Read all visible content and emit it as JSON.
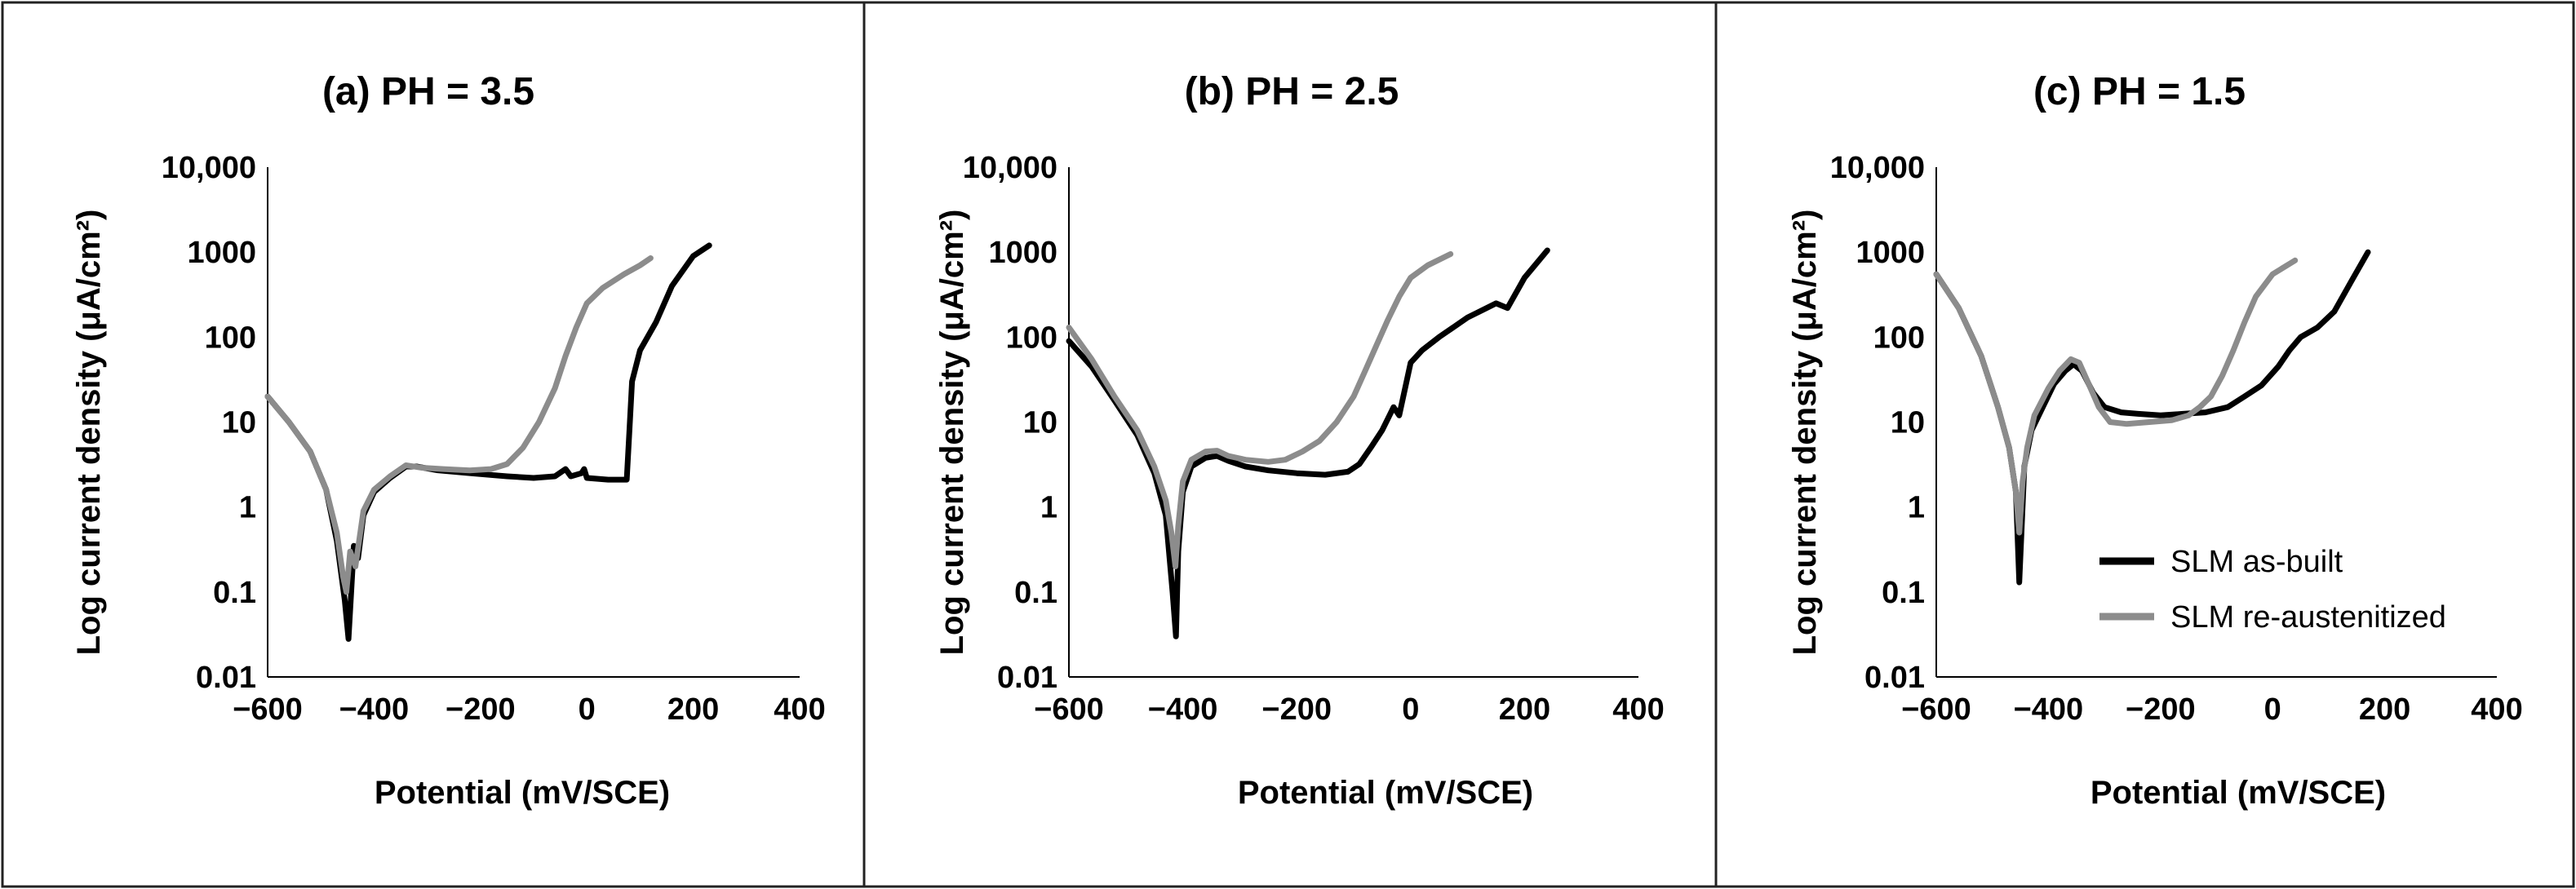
{
  "chart_data": [
    {
      "type": "line",
      "title": "(a)  PH = 3.5",
      "xlabel": "Potential (mV/SCE)",
      "ylabel": "Log current density (μA/cm²)",
      "xlim": [
        -600,
        400
      ],
      "ylim": [
        0.01,
        10000
      ],
      "yscale": "log",
      "x_ticks": [
        -600,
        -400,
        -200,
        0,
        200,
        400
      ],
      "x_tick_labels": [
        "−600",
        "−400",
        "−200",
        "0",
        "200",
        "400"
      ],
      "y_ticks": [
        10000,
        1000,
        100,
        10,
        1,
        0.1,
        0.01
      ],
      "y_tick_labels": [
        "10,000",
        "1000",
        "100",
        "10",
        "1",
        "0.1",
        "0.01"
      ],
      "series": [
        {
          "name": "SLM as-built",
          "color": "#000000",
          "points": [
            [
              -600,
              20
            ],
            [
              -560,
              10
            ],
            [
              -520,
              4.5
            ],
            [
              -490,
              1.6
            ],
            [
              -470,
              0.4
            ],
            [
              -455,
              0.08
            ],
            [
              -448,
              0.028
            ],
            [
              -443,
              0.1
            ],
            [
              -438,
              0.35
            ],
            [
              -430,
              0.25
            ],
            [
              -420,
              0.8
            ],
            [
              -400,
              1.5
            ],
            [
              -370,
              2.2
            ],
            [
              -340,
              3.0
            ],
            [
              -320,
              3.0
            ],
            [
              -280,
              2.7
            ],
            [
              -220,
              2.5
            ],
            [
              -150,
              2.3
            ],
            [
              -100,
              2.2
            ],
            [
              -60,
              2.3
            ],
            [
              -40,
              2.8
            ],
            [
              -30,
              2.3
            ],
            [
              -10,
              2.5
            ],
            [
              -5,
              2.8
            ],
            [
              0,
              2.2
            ],
            [
              40,
              2.1
            ],
            [
              75,
              2.1
            ],
            [
              80,
              8
            ],
            [
              85,
              30
            ],
            [
              100,
              70
            ],
            [
              130,
              150
            ],
            [
              160,
              400
            ],
            [
              200,
              900
            ],
            [
              230,
              1200
            ]
          ]
        },
        {
          "name": "SLM re-austenitized",
          "color": "#8c8c8c",
          "points": [
            [
              -600,
              20
            ],
            [
              -560,
              10
            ],
            [
              -520,
              4.5
            ],
            [
              -490,
              1.6
            ],
            [
              -470,
              0.5
            ],
            [
              -458,
              0.15
            ],
            [
              -452,
              0.1
            ],
            [
              -445,
              0.3
            ],
            [
              -435,
              0.2
            ],
            [
              -420,
              0.9
            ],
            [
              -400,
              1.6
            ],
            [
              -370,
              2.3
            ],
            [
              -340,
              3.1
            ],
            [
              -310,
              2.9
            ],
            [
              -270,
              2.8
            ],
            [
              -220,
              2.7
            ],
            [
              -180,
              2.8
            ],
            [
              -150,
              3.2
            ],
            [
              -120,
              5
            ],
            [
              -90,
              10
            ],
            [
              -60,
              25
            ],
            [
              -40,
              60
            ],
            [
              -20,
              130
            ],
            [
              0,
              250
            ],
            [
              30,
              380
            ],
            [
              70,
              550
            ],
            [
              100,
              700
            ],
            [
              120,
              850
            ]
          ]
        }
      ]
    },
    {
      "type": "line",
      "title": "(b)  PH = 2.5",
      "xlabel": "Potential (mV/SCE)",
      "ylabel": "Log current density (μA/cm²)",
      "xlim": [
        -600,
        400
      ],
      "ylim": [
        0.01,
        10000
      ],
      "yscale": "log",
      "x_ticks": [
        -600,
        -400,
        -200,
        0,
        200,
        400
      ],
      "x_tick_labels": [
        "−600",
        "−400",
        "−200",
        "0",
        "200",
        "400"
      ],
      "y_ticks": [
        10000,
        1000,
        100,
        10,
        1,
        0.1,
        0.01
      ],
      "y_tick_labels": [
        "10,000",
        "1000",
        "100",
        "10",
        "1",
        "0.1",
        "0.01"
      ],
      "series": [
        {
          "name": "SLM as-built",
          "color": "#000000",
          "points": [
            [
              -600,
              90
            ],
            [
              -560,
              45
            ],
            [
              -520,
              18
            ],
            [
              -480,
              7
            ],
            [
              -450,
              2.5
            ],
            [
              -430,
              0.8
            ],
            [
              -418,
              0.1
            ],
            [
              -412,
              0.03
            ],
            [
              -408,
              0.3
            ],
            [
              -400,
              1.5
            ],
            [
              -385,
              3
            ],
            [
              -360,
              3.8
            ],
            [
              -340,
              4.0
            ],
            [
              -320,
              3.5
            ],
            [
              -290,
              3.0
            ],
            [
              -250,
              2.7
            ],
            [
              -200,
              2.5
            ],
            [
              -150,
              2.4
            ],
            [
              -110,
              2.6
            ],
            [
              -90,
              3.2
            ],
            [
              -70,
              5
            ],
            [
              -50,
              8
            ],
            [
              -30,
              15
            ],
            [
              -20,
              12
            ],
            [
              0,
              50
            ],
            [
              20,
              70
            ],
            [
              50,
              100
            ],
            [
              100,
              170
            ],
            [
              150,
              250
            ],
            [
              170,
              220
            ],
            [
              200,
              500
            ],
            [
              240,
              1050
            ]
          ]
        },
        {
          "name": "SLM re-austenitized",
          "color": "#8c8c8c",
          "points": [
            [
              -600,
              130
            ],
            [
              -560,
              55
            ],
            [
              -520,
              20
            ],
            [
              -480,
              8
            ],
            [
              -450,
              3
            ],
            [
              -430,
              1.2
            ],
            [
              -420,
              0.5
            ],
            [
              -413,
              0.2
            ],
            [
              -408,
              0.6
            ],
            [
              -400,
              2
            ],
            [
              -385,
              3.6
            ],
            [
              -360,
              4.5
            ],
            [
              -340,
              4.6
            ],
            [
              -320,
              4.0
            ],
            [
              -290,
              3.6
            ],
            [
              -250,
              3.4
            ],
            [
              -220,
              3.6
            ],
            [
              -190,
              4.5
            ],
            [
              -160,
              6
            ],
            [
              -130,
              10
            ],
            [
              -100,
              20
            ],
            [
              -80,
              40
            ],
            [
              -60,
              80
            ],
            [
              -40,
              160
            ],
            [
              -20,
              300
            ],
            [
              0,
              500
            ],
            [
              30,
              700
            ],
            [
              70,
              950
            ]
          ]
        }
      ]
    },
    {
      "type": "line",
      "title": "(c)  PH = 1.5",
      "xlabel": "Potential (mV/SCE)",
      "ylabel": "Log current density (μA/cm²)",
      "xlim": [
        -600,
        400
      ],
      "ylim": [
        0.01,
        10000
      ],
      "yscale": "log",
      "x_ticks": [
        -600,
        -400,
        -200,
        0,
        200,
        400
      ],
      "x_tick_labels": [
        "−600",
        "−400",
        "−200",
        "0",
        "200",
        "400"
      ],
      "y_ticks": [
        10000,
        1000,
        100,
        10,
        1,
        0.1,
        0.01
      ],
      "y_tick_labels": [
        "10,000",
        "1000",
        "100",
        "10",
        "1",
        "0.1",
        "0.01"
      ],
      "legend_position": "bottom-right",
      "series": [
        {
          "name": "SLM as-built",
          "color": "#000000",
          "points": [
            [
              -600,
              550
            ],
            [
              -560,
              220
            ],
            [
              -520,
              60
            ],
            [
              -490,
              15
            ],
            [
              -470,
              5
            ],
            [
              -458,
              1.5
            ],
            [
              -452,
              0.13
            ],
            [
              -448,
              0.5
            ],
            [
              -443,
              3
            ],
            [
              -430,
              8
            ],
            [
              -410,
              15
            ],
            [
              -390,
              28
            ],
            [
              -370,
              40
            ],
            [
              -355,
              48
            ],
            [
              -340,
              40
            ],
            [
              -320,
              22
            ],
            [
              -300,
              15
            ],
            [
              -270,
              13
            ],
            [
              -240,
              12.5
            ],
            [
              -200,
              12
            ],
            [
              -160,
              12.5
            ],
            [
              -120,
              13
            ],
            [
              -80,
              15
            ],
            [
              -50,
              20
            ],
            [
              -20,
              27
            ],
            [
              10,
              45
            ],
            [
              30,
              70
            ],
            [
              50,
              100
            ],
            [
              80,
              130
            ],
            [
              110,
              200
            ],
            [
              140,
              450
            ],
            [
              170,
              1000
            ]
          ]
        },
        {
          "name": "SLM re-austenitized",
          "color": "#8c8c8c",
          "points": [
            [
              -600,
              550
            ],
            [
              -560,
              220
            ],
            [
              -520,
              60
            ],
            [
              -490,
              15
            ],
            [
              -470,
              5
            ],
            [
              -458,
              1.5
            ],
            [
              -452,
              0.5
            ],
            [
              -446,
              2
            ],
            [
              -438,
              5
            ],
            [
              -425,
              12
            ],
            [
              -400,
              25
            ],
            [
              -380,
              40
            ],
            [
              -360,
              55
            ],
            [
              -345,
              50
            ],
            [
              -330,
              30
            ],
            [
              -310,
              15
            ],
            [
              -290,
              10
            ],
            [
              -260,
              9.5
            ],
            [
              -220,
              10
            ],
            [
              -180,
              10.5
            ],
            [
              -150,
              12
            ],
            [
              -130,
              15
            ],
            [
              -110,
              20
            ],
            [
              -90,
              35
            ],
            [
              -70,
              70
            ],
            [
              -50,
              150
            ],
            [
              -30,
              300
            ],
            [
              0,
              550
            ],
            [
              40,
              800
            ]
          ]
        }
      ]
    }
  ]
}
